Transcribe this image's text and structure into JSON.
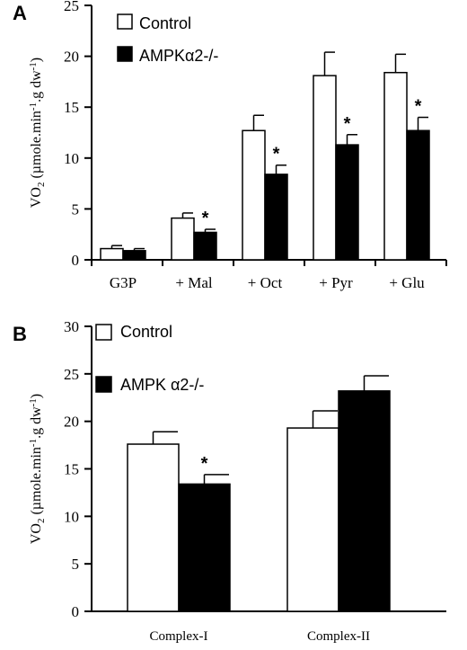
{
  "chart_data": [
    {
      "panel_label": "A",
      "type": "bar",
      "ylabel_main": "VO",
      "ylabel_sub": "2",
      "ylabel_rest": " (µmole.min",
      "ylabel_exp1": "-1",
      "ylabel_mid": ".g dw",
      "ylabel_exp2": "-1",
      "ylabel_end": ")",
      "ylim": [
        0,
        25
      ],
      "yticks": [
        0,
        5,
        10,
        15,
        20,
        25
      ],
      "categories": [
        "G3P",
        "+ Mal",
        "+ Oct",
        "+ Pyr",
        "+ Glu"
      ],
      "legend_position": "top-left",
      "series": [
        {
          "name": "Control",
          "color": "#ffffff",
          "values": [
            1.1,
            4.1,
            12.7,
            18.1,
            18.4
          ],
          "errors": [
            0.3,
            0.5,
            1.5,
            2.3,
            1.8
          ]
        },
        {
          "name": "AMPKα2-/-",
          "color": "#000000",
          "values": [
            0.9,
            2.7,
            8.4,
            11.3,
            12.7
          ],
          "errors": [
            0.2,
            0.3,
            0.9,
            1.0,
            1.3
          ]
        }
      ],
      "significance": [
        "",
        "*",
        "*",
        "*",
        "*"
      ]
    },
    {
      "panel_label": "B",
      "type": "bar",
      "ylabel_main": "VO",
      "ylabel_sub": "2",
      "ylabel_rest": " (µmole.min",
      "ylabel_exp1": "-1",
      "ylabel_mid": ".g dw",
      "ylabel_exp2": "-1",
      "ylabel_end": ")",
      "ylim": [
        0,
        30
      ],
      "yticks": [
        0,
        5,
        10,
        15,
        20,
        25,
        30
      ],
      "categories": [
        "Complex-I",
        "Complex-II"
      ],
      "legend_position": "top-left",
      "series": [
        {
          "name": "Control",
          "color": "#ffffff",
          "values": [
            17.6,
            19.3
          ],
          "errors": [
            1.3,
            1.8
          ]
        },
        {
          "name": "AMPK α2-/-",
          "color": "#000000",
          "values": [
            13.4,
            23.2
          ],
          "errors": [
            1.0,
            1.6
          ]
        }
      ],
      "significance": [
        "*",
        ""
      ]
    }
  ]
}
